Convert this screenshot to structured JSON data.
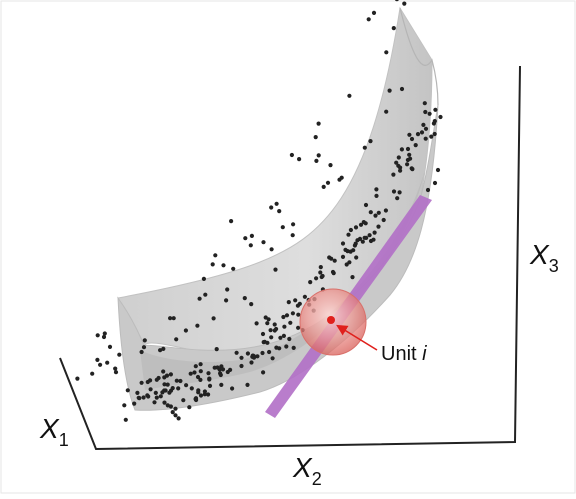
{
  "axes": {
    "x1": {
      "letter": "X",
      "sub": "1"
    },
    "x2": {
      "letter": "X",
      "sub": "2"
    },
    "x3": {
      "letter": "X",
      "sub": "3"
    }
  },
  "annotation": {
    "label": "Unit ",
    "label_italic": "i"
  },
  "colors": {
    "surface": "#d3d3d3",
    "surface_dark": "#b9b9b9",
    "points": "#222222",
    "tangent_plane": "#b16fc6",
    "unit_sphere": "#e98480",
    "unit_point": "#e0201c",
    "annotation_arrow": "#e0201c",
    "axes": "#222222"
  }
}
